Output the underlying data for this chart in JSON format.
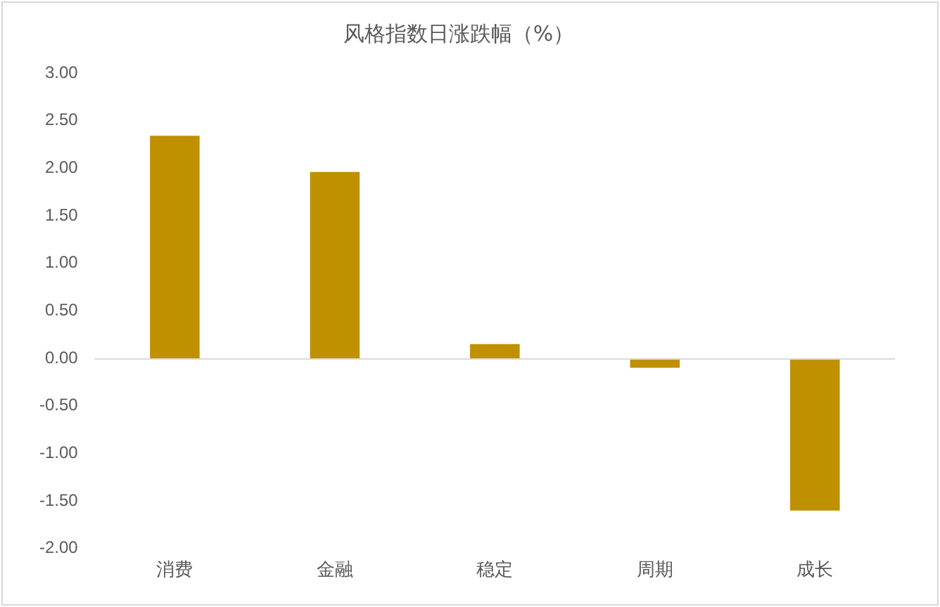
{
  "chart_data": {
    "type": "bar",
    "title": "风格指数日涨跌幅（%）",
    "categories": [
      "消费",
      "金融",
      "稳定",
      "周期",
      "成长"
    ],
    "values": [
      2.34,
      1.96,
      0.15,
      -0.1,
      -1.6
    ],
    "color": "#bf9000",
    "ylim": [
      -2,
      3
    ],
    "yticks": [
      {
        "value": -2,
        "label": "-2.00"
      },
      {
        "value": -1.5,
        "label": "-1.50"
      },
      {
        "value": -1,
        "label": "-1.00"
      },
      {
        "value": -0.5,
        "label": "-0.50"
      },
      {
        "value": 0,
        "label": "0.00"
      },
      {
        "value": 0.5,
        "label": "0.50"
      },
      {
        "value": 1,
        "label": "1.00"
      },
      {
        "value": 1.5,
        "label": "1.50"
      },
      {
        "value": 2,
        "label": "2.00"
      },
      {
        "value": 2.5,
        "label": "2.50"
      },
      {
        "value": 3,
        "label": "3.00"
      }
    ],
    "ref_lines": [
      {
        "axis": "y",
        "value": 0,
        "color": "#d9d9d9"
      }
    ],
    "grid": false,
    "legend": false
  }
}
